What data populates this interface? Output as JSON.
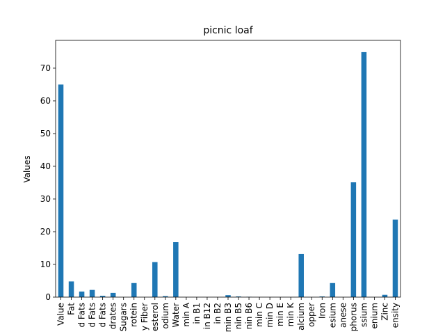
{
  "chart_data": {
    "type": "bar",
    "title": "picnic loaf",
    "xlabel": "",
    "ylabel": "Values",
    "ylim": [
      0,
      78.5
    ],
    "yticks": [
      0,
      10,
      20,
      30,
      40,
      50,
      60,
      70
    ],
    "grid": false,
    "bar_color": "#1f77b4",
    "categories": [
      "Value",
      "Fat",
      "d Fats",
      "d Fats",
      "d Fats",
      "drates",
      "Sugars",
      "rotein",
      "y Fiber",
      "esterol",
      "odium",
      "Water",
      "min A",
      "in B1",
      "in B12",
      "in B2",
      "min B3",
      "nin B5",
      "nin B6",
      "min C",
      "min D",
      "min E",
      "min K",
      "alcium",
      "opper",
      "Iron",
      "esium",
      "anese",
      "phorus",
      "ssium",
      "enium",
      "Zinc",
      "ensity"
    ],
    "values": [
      65.0,
      4.8,
      1.7,
      2.2,
      0.4,
      1.3,
      0,
      4.3,
      0,
      10.7,
      0.3,
      16.8,
      0,
      0,
      0,
      0,
      0.6,
      0.2,
      0.1,
      0,
      0,
      0,
      0,
      13.2,
      0,
      0.2,
      4.3,
      0,
      35.1,
      74.9,
      0,
      0.7,
      23.7
    ]
  }
}
